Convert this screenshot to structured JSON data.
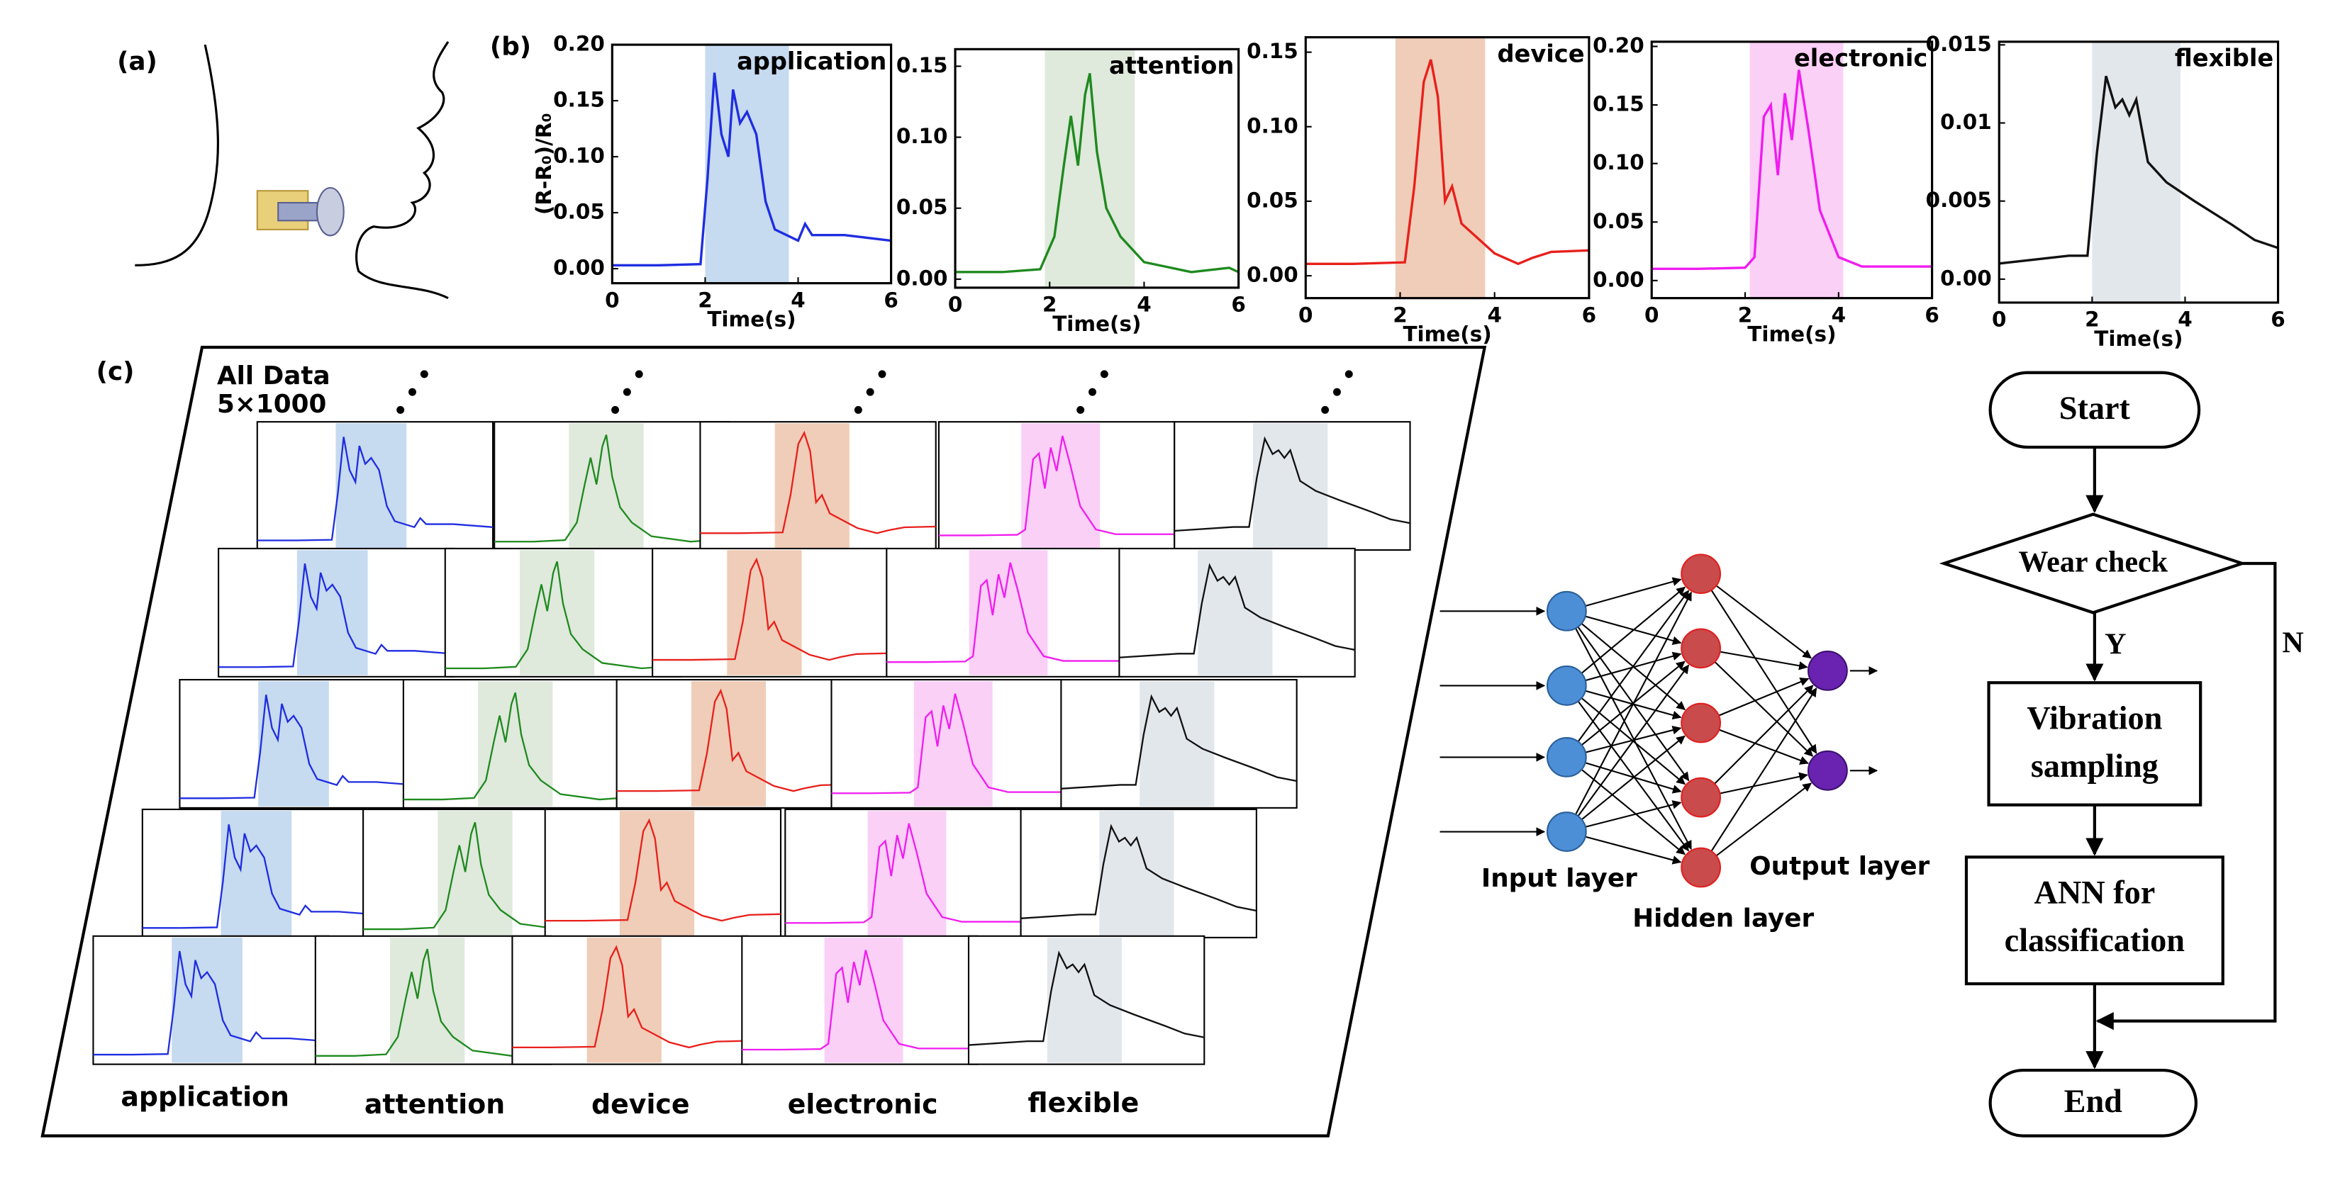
{
  "panel_labels": [
    "(a)",
    "(b)",
    "(c)"
  ],
  "chart_data": [
    {
      "type": "line",
      "title": "application",
      "xlabel": "Time(s)",
      "ylabel": "(R-R₀)/R₀",
      "color": "#1f2de0",
      "highlight": [
        2,
        3.8
      ],
      "highlight_color": "#c6daf0",
      "x": [
        0,
        1,
        1.9,
        2.05,
        2.2,
        2.35,
        2.5,
        2.6,
        2.75,
        2.9,
        3.1,
        3.3,
        3.5,
        4,
        4.15,
        4.3,
        5,
        6
      ],
      "values": [
        0.003,
        0.003,
        0.004,
        0.08,
        0.175,
        0.12,
        0.1,
        0.16,
        0.13,
        0.14,
        0.12,
        0.06,
        0.035,
        0.025,
        0.04,
        0.03,
        0.03,
        0.025
      ],
      "xlim": [
        0,
        6
      ],
      "xticks": [
        0,
        2,
        4,
        6
      ],
      "ylim": [
        -0.013,
        0.2
      ],
      "yticks": [
        {
          "value": 0,
          "label": "0.00"
        },
        {
          "value": 0.05,
          "label": "0.05"
        },
        {
          "value": 0.1,
          "label": "0.10"
        },
        {
          "value": 0.15,
          "label": "0.15"
        },
        {
          "value": 0.2,
          "label": "0.20"
        }
      ]
    },
    {
      "type": "line",
      "title": "attention",
      "xlabel": "Time(s)",
      "color": "#1e8a1e",
      "highlight": [
        1.9,
        3.8
      ],
      "highlight_color": "#dfe9dc",
      "x": [
        0,
        1,
        1.8,
        2.1,
        2.3,
        2.45,
        2.6,
        2.75,
        2.85,
        3.0,
        3.2,
        3.5,
        4,
        5,
        5.8,
        6
      ],
      "values": [
        0.005,
        0.005,
        0.007,
        0.03,
        0.08,
        0.115,
        0.08,
        0.13,
        0.145,
        0.09,
        0.05,
        0.03,
        0.012,
        0.005,
        0.008,
        0.005
      ],
      "xlim": [
        0,
        6
      ],
      "xticks": [
        0,
        2,
        4,
        6
      ],
      "ylim": [
        -0.006,
        0.162
      ],
      "yticks": [
        {
          "value": 0,
          "label": "0.00"
        },
        {
          "value": 0.05,
          "label": "0.05"
        },
        {
          "value": 0.1,
          "label": "0.10"
        },
        {
          "value": 0.15,
          "label": "0.15"
        }
      ]
    },
    {
      "type": "line",
      "title": "device",
      "xlabel": "Time(s)",
      "color": "#e8201c",
      "highlight": [
        1.9,
        3.8
      ],
      "highlight_color": "#f0cdb8",
      "x": [
        0,
        1,
        2.1,
        2.3,
        2.5,
        2.65,
        2.8,
        2.95,
        3.1,
        3.3,
        4,
        4.5,
        4.8,
        5.2,
        6
      ],
      "values": [
        0.008,
        0.008,
        0.009,
        0.06,
        0.13,
        0.145,
        0.12,
        0.05,
        0.06,
        0.035,
        0.015,
        0.008,
        0.012,
        0.016,
        0.017
      ],
      "xlim": [
        0,
        6
      ],
      "xticks": [
        0,
        2,
        4,
        6
      ],
      "ylim": [
        -0.015,
        0.16
      ],
      "yticks": [
        {
          "value": 0,
          "label": "0.00"
        },
        {
          "value": 0.05,
          "label": "0.05"
        },
        {
          "value": 0.1,
          "label": "0.10"
        },
        {
          "value": 0.15,
          "label": "0.15"
        }
      ]
    },
    {
      "type": "line",
      "title": "electronic",
      "xlabel": "Time(s)",
      "color": "#f01cf0",
      "highlight": [
        2.1,
        4.1
      ],
      "highlight_color": "#fad0f7",
      "x": [
        0,
        1,
        2.0,
        2.2,
        2.4,
        2.55,
        2.7,
        2.85,
        3.0,
        3.15,
        3.35,
        3.6,
        4,
        4.5,
        6
      ],
      "values": [
        0.01,
        0.01,
        0.011,
        0.02,
        0.14,
        0.15,
        0.09,
        0.16,
        0.12,
        0.18,
        0.13,
        0.06,
        0.02,
        0.012,
        0.012
      ],
      "xlim": [
        0,
        6
      ],
      "xticks": [
        0,
        2,
        4,
        6
      ],
      "ylim": [
        -0.015,
        0.204
      ],
      "yticks": [
        {
          "value": 0,
          "label": "0.00"
        },
        {
          "value": 0.05,
          "label": "0.05"
        },
        {
          "value": 0.1,
          "label": "0.10"
        },
        {
          "value": 0.15,
          "label": "0.15"
        },
        {
          "value": 0.2,
          "label": "0.20"
        }
      ]
    },
    {
      "type": "line",
      "title": "flexible",
      "xlabel": "Time(s)",
      "color": "#111111",
      "highlight": [
        2,
        3.9
      ],
      "highlight_color": "#e2e7ec",
      "x": [
        0,
        1.5,
        1.9,
        2.1,
        2.3,
        2.5,
        2.65,
        2.8,
        2.95,
        3.2,
        3.6,
        4.2,
        5,
        5.5,
        6
      ],
      "values": [
        0.001,
        0.0015,
        0.0015,
        0.008,
        0.013,
        0.011,
        0.0115,
        0.0105,
        0.0115,
        0.0075,
        0.0062,
        0.005,
        0.0035,
        0.0025,
        0.002
      ],
      "xlim": [
        0,
        6
      ],
      "xticks": [
        0,
        2,
        4,
        6
      ],
      "ylim": [
        -0.0015,
        0.0152
      ],
      "yticks": [
        {
          "value": 0,
          "label": "0.00"
        },
        {
          "value": 0.005,
          "label": "0.005"
        },
        {
          "value": 0.01,
          "label": "0.01"
        },
        {
          "value": 0.015,
          "label": "0.015"
        }
      ]
    }
  ],
  "dataset": {
    "title": "All Data",
    "size": "5×1000"
  },
  "network": {
    "labels": [
      "Input layer",
      "Hidden layer",
      "Output layer"
    ]
  },
  "flowchart": {
    "nodes": [
      [
        "Start"
      ],
      [
        "Wear check"
      ],
      [
        "Vibration",
        "sampling"
      ],
      [
        "ANN for",
        "classification"
      ],
      [
        "End"
      ]
    ],
    "branches": [
      "Y",
      "N"
    ]
  }
}
